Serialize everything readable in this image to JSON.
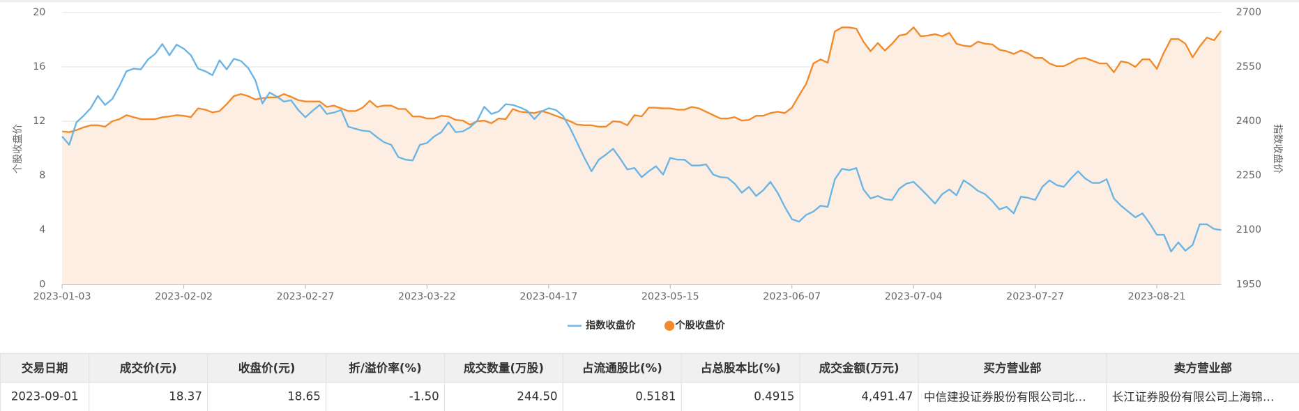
{
  "chart_data": {
    "type": "line",
    "y_label": "个股收盘价",
    "y2_label": "指数收盘价",
    "ylim": [
      0,
      20
    ],
    "yticks": [
      0,
      4,
      8,
      12,
      16,
      20
    ],
    "y2lim": [
      1950,
      2700
    ],
    "y2ticks": [
      1950,
      2100,
      2250,
      2400,
      2550,
      2700
    ],
    "grid": true,
    "legend": "bottom",
    "categories": [
      "2023-01-03",
      null,
      null,
      null,
      null,
      null,
      null,
      null,
      null,
      null,
      null,
      null,
      null,
      null,
      null,
      null,
      null,
      "2023-02-02",
      null,
      null,
      null,
      null,
      null,
      null,
      null,
      null,
      null,
      null,
      null,
      null,
      null,
      null,
      null,
      null,
      "2023-02-27",
      null,
      null,
      null,
      null,
      null,
      null,
      null,
      null,
      null,
      null,
      null,
      null,
      null,
      null,
      null,
      null,
      "2023-03-22",
      null,
      null,
      null,
      null,
      null,
      null,
      null,
      null,
      null,
      null,
      null,
      null,
      null,
      null,
      null,
      null,
      "2023-04-17",
      null,
      null,
      null,
      null,
      null,
      null,
      null,
      null,
      null,
      null,
      null,
      null,
      null,
      null,
      null,
      null,
      "2023-05-15",
      null,
      null,
      null,
      null,
      null,
      null,
      null,
      null,
      null,
      null,
      null,
      null,
      null,
      null,
      null,
      null,
      "2023-06-07",
      null,
      null,
      null,
      null,
      null,
      null,
      null,
      null,
      null,
      null,
      null,
      null,
      null,
      null,
      null,
      null,
      "2023-07-04",
      null,
      null,
      null,
      null,
      null,
      null,
      null,
      null,
      null,
      null,
      null,
      null,
      null,
      null,
      null,
      null,
      "2023-07-27",
      null,
      null,
      null,
      null,
      null,
      null,
      null,
      null,
      null,
      null,
      null,
      null,
      null,
      null,
      null,
      null,
      "2023-08-21",
      null,
      null,
      null,
      null,
      null,
      null,
      null,
      null,
      null
    ],
    "series": [
      {
        "name": "指数收盘价",
        "color": "#6cb4e4",
        "axis": "y2",
        "marker": "line",
        "values": [
          2358,
          2335,
          2397,
          2415,
          2436,
          2470,
          2445,
          2461,
          2497,
          2538,
          2545,
          2543,
          2570,
          2586,
          2613,
          2582,
          2611,
          2600,
          2582,
          2545,
          2538,
          2527,
          2568,
          2543,
          2572,
          2566,
          2547,
          2513,
          2449,
          2479,
          2468,
          2454,
          2458,
          2431,
          2411,
          2429,
          2445,
          2420,
          2424,
          2431,
          2385,
          2379,
          2374,
          2372,
          2356,
          2342,
          2335,
          2301,
          2294,
          2292,
          2335,
          2340,
          2358,
          2370,
          2397,
          2370,
          2372,
          2383,
          2401,
          2440,
          2420,
          2427,
          2447,
          2445,
          2438,
          2429,
          2406,
          2427,
          2436,
          2431,
          2415,
          2381,
          2340,
          2299,
          2262,
          2294,
          2308,
          2324,
          2297,
          2267,
          2271,
          2246,
          2262,
          2276,
          2253,
          2299,
          2294,
          2294,
          2278,
          2278,
          2281,
          2253,
          2246,
          2244,
          2228,
          2203,
          2219,
          2194,
          2210,
          2233,
          2203,
          2164,
          2130,
          2123,
          2142,
          2151,
          2167,
          2164,
          2240,
          2269,
          2265,
          2271,
          2212,
          2187,
          2194,
          2185,
          2183,
          2214,
          2228,
          2233,
          2214,
          2194,
          2173,
          2199,
          2212,
          2196,
          2237,
          2224,
          2208,
          2199,
          2180,
          2157,
          2164,
          2146,
          2192,
          2189,
          2183,
          2219,
          2237,
          2224,
          2219,
          2242,
          2262,
          2242,
          2230,
          2230,
          2240,
          2187,
          2167,
          2151,
          2135,
          2146,
          2119,
          2087,
          2087,
          2041,
          2066,
          2043,
          2059,
          2116,
          2116,
          2103,
          2100
        ]
      },
      {
        "name": "个股收盘价",
        "color": "#f28a2a",
        "area_color": "#fdeee3",
        "axis": "y",
        "marker": "circle",
        "area": true,
        "values": [
          11.25,
          11.2,
          11.35,
          11.55,
          11.7,
          11.7,
          11.6,
          12.0,
          12.15,
          12.45,
          12.3,
          12.15,
          12.15,
          12.15,
          12.3,
          12.35,
          12.45,
          12.4,
          12.3,
          12.95,
          12.85,
          12.65,
          12.75,
          13.25,
          13.85,
          14.0,
          13.85,
          13.6,
          13.7,
          13.75,
          13.75,
          14.0,
          13.8,
          13.55,
          13.45,
          13.45,
          13.45,
          13.05,
          13.15,
          12.95,
          12.75,
          12.75,
          13.0,
          13.5,
          13.05,
          13.15,
          13.15,
          12.9,
          12.9,
          12.35,
          12.35,
          12.2,
          12.2,
          12.4,
          12.35,
          12.1,
          12.05,
          11.75,
          12.0,
          12.05,
          11.85,
          12.2,
          12.15,
          12.9,
          12.7,
          12.65,
          12.6,
          12.75,
          12.6,
          12.4,
          12.2,
          12.0,
          11.75,
          11.7,
          11.7,
          11.6,
          11.6,
          12.0,
          11.95,
          11.7,
          12.45,
          12.35,
          13.0,
          13.0,
          12.95,
          12.95,
          12.85,
          12.85,
          13.05,
          12.95,
          12.7,
          12.45,
          12.2,
          12.2,
          12.3,
          12.05,
          12.1,
          12.4,
          12.4,
          12.6,
          12.7,
          12.6,
          13.0,
          13.9,
          14.75,
          16.25,
          16.55,
          16.3,
          18.6,
          18.9,
          18.9,
          18.8,
          17.85,
          17.15,
          17.75,
          17.2,
          17.7,
          18.3,
          18.4,
          18.9,
          18.25,
          18.3,
          18.4,
          18.25,
          18.5,
          17.7,
          17.55,
          17.5,
          17.85,
          17.7,
          17.65,
          17.25,
          17.15,
          16.95,
          17.2,
          17.0,
          16.65,
          16.65,
          16.25,
          16.05,
          16.05,
          16.3,
          16.6,
          16.65,
          16.45,
          16.25,
          16.25,
          15.6,
          16.4,
          16.3,
          16.0,
          16.55,
          16.55,
          15.85,
          17.05,
          18.05,
          18.05,
          17.7,
          16.7,
          17.5,
          18.15,
          17.95,
          18.65
        ]
      }
    ]
  },
  "table": {
    "headers": [
      "交易日期",
      "成交价(元)",
      "收盘价(元)",
      "折/溢价率(%)",
      "成交数量(万股)",
      "占流通股比(%)",
      "占总股本比(%)",
      "成交金额(万元)",
      "买方营业部",
      "卖方营业部"
    ],
    "rows": [
      [
        "2023-09-01",
        "18.37",
        "18.65",
        "-1.50",
        "244.50",
        "0.5181",
        "0.4915",
        "4,491.47",
        "中信建投证券股份有限公司北…",
        "长江证券股份有限公司上海锦…"
      ]
    ]
  }
}
